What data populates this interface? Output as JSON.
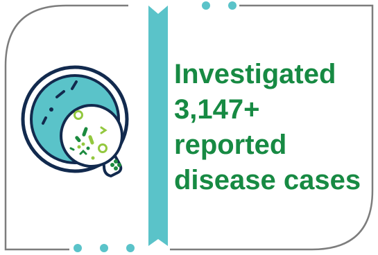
{
  "headline": {
    "line1": "Investigated",
    "line2": "3,147+",
    "line3": "reported",
    "line4": "disease cases"
  },
  "icon": {
    "name": "petri-dish-bacteria-icon"
  },
  "colors": {
    "text": "#178a43",
    "teal": "#5ac3c9",
    "navy": "#122a4e",
    "lime": "#93c83f",
    "green": "#1b8a3e",
    "frame": "#7d7d7d"
  }
}
